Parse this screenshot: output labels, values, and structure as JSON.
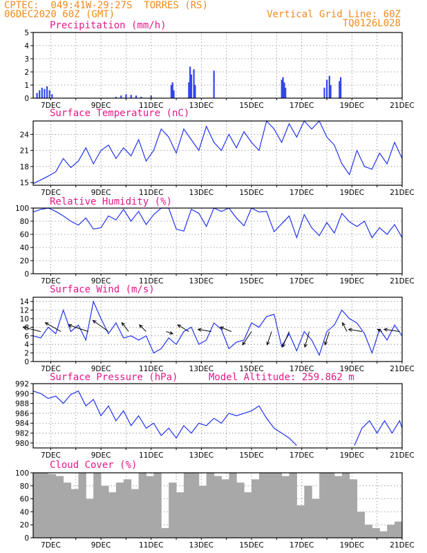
{
  "header": {
    "line1_left": "CPTEC:  049:41W-29:27S  TORRES (RS)",
    "line2_left": "06DEC2020 60Z (GMT)",
    "line1_right": "Vertical Grid Line: 60Z",
    "line2_right": "TQ0126L028"
  },
  "date_ticks": [
    "7DEC",
    "9DEC",
    "11DEC",
    "13DEC",
    "15DEC",
    "17DEC",
    "19DEC",
    "21DEC"
  ],
  "colors": {
    "header": "#f08a1c",
    "label": "#e0198a",
    "line": "#2233ee",
    "bar": "#3344ee",
    "cloud": "#a8a8a8",
    "arrow": "#000000"
  },
  "chart_data": [
    {
      "id": "precip",
      "type": "bar",
      "title": "Precipitation (mm/h)",
      "x_range": [
        6.3,
        21.0
      ],
      "ylim": [
        0,
        5
      ],
      "yticks": [
        "0",
        "1",
        "2",
        "3",
        "4",
        "5"
      ],
      "series": [
        {
          "x": [
            6.45,
            6.55,
            6.65,
            6.75,
            6.85,
            6.95,
            7.05,
            9.6,
            9.8,
            10.0,
            10.2,
            10.4,
            10.6,
            11.0,
            11.8,
            11.85,
            11.9,
            12.5,
            12.55,
            12.6,
            12.7,
            12.75,
            13.5,
            16.2,
            16.25,
            16.3,
            16.35,
            17.9,
            18.0,
            18.1,
            18.15,
            18.5,
            18.55
          ],
          "values": [
            0.4,
            0.6,
            0.8,
            0.7,
            0.9,
            0.6,
            0.3,
            0.1,
            0.2,
            0.3,
            0.25,
            0.2,
            0.1,
            0.2,
            1.0,
            1.2,
            0.6,
            1.2,
            2.4,
            1.8,
            2.2,
            1.0,
            2.1,
            1.4,
            1.6,
            1.2,
            0.8,
            0.8,
            1.4,
            1.7,
            1.0,
            1.3,
            1.6
          ]
        }
      ]
    },
    {
      "id": "temp",
      "type": "line",
      "title": "Surface Temperature (nC)",
      "x_range": [
        6.3,
        21.0
      ],
      "ylim": [
        14.5,
        26.5
      ],
      "yticks": [
        "15",
        "18",
        "21",
        "24"
      ],
      "series": [
        {
          "x": [
            6.3,
            6.6,
            6.9,
            7.2,
            7.5,
            7.8,
            8.1,
            8.4,
            8.7,
            9.0,
            9.3,
            9.6,
            9.9,
            10.2,
            10.5,
            10.8,
            11.1,
            11.4,
            11.7,
            12.0,
            12.3,
            12.6,
            12.9,
            13.2,
            13.5,
            13.8,
            14.1,
            14.4,
            14.7,
            15.0,
            15.3,
            15.6,
            15.9,
            16.2,
            16.5,
            16.8,
            17.1,
            17.4,
            17.7,
            18.0,
            18.3,
            18.6,
            18.9,
            19.2,
            19.5,
            19.8,
            20.1,
            20.4,
            20.7,
            21.0
          ],
          "values": [
            14.8,
            15.5,
            16.2,
            17.0,
            19.5,
            17.8,
            19.0,
            21.5,
            18.5,
            21.0,
            22.0,
            19.5,
            21.5,
            20.0,
            23.0,
            19.0,
            21.0,
            25.0,
            23.5,
            20.5,
            25.0,
            23.0,
            21.0,
            25.5,
            22.5,
            21.0,
            24.0,
            21.5,
            24.5,
            22.5,
            21.0,
            26.5,
            25.0,
            22.5,
            26.0,
            23.5,
            26.5,
            25.0,
            26.5,
            23.5,
            22.0,
            18.5,
            16.5,
            21.0,
            18.0,
            17.5,
            20.5,
            18.5,
            22.5,
            19.5
          ]
        }
      ]
    },
    {
      "id": "rh",
      "type": "line",
      "title": "Relative Humidity (%)",
      "x_range": [
        6.3,
        21.0
      ],
      "ylim": [
        0,
        100
      ],
      "yticks": [
        "0",
        "20",
        "40",
        "60",
        "80",
        "100"
      ],
      "series": [
        {
          "x": [
            6.3,
            6.6,
            6.9,
            7.2,
            7.5,
            7.8,
            8.1,
            8.4,
            8.7,
            9.0,
            9.3,
            9.6,
            9.9,
            10.2,
            10.5,
            10.8,
            11.1,
            11.4,
            11.7,
            12.0,
            12.3,
            12.6,
            12.9,
            13.2,
            13.5,
            13.8,
            14.1,
            14.4,
            14.7,
            15.0,
            15.3,
            15.6,
            15.9,
            16.2,
            16.5,
            16.8,
            17.1,
            17.4,
            17.7,
            18.0,
            18.3,
            18.6,
            18.9,
            19.2,
            19.5,
            19.8,
            20.1,
            20.4,
            20.7,
            21.0
          ],
          "values": [
            94,
            98,
            100,
            95,
            88,
            80,
            74,
            85,
            68,
            70,
            88,
            82,
            98,
            80,
            95,
            75,
            90,
            100,
            100,
            68,
            65,
            98,
            92,
            72,
            100,
            95,
            100,
            85,
            73,
            100,
            94,
            95,
            64,
            76,
            88,
            55,
            90,
            70,
            58,
            78,
            62,
            92,
            79,
            72,
            80,
            55,
            70,
            60,
            75,
            55
          ]
        }
      ]
    },
    {
      "id": "wind",
      "type": "line",
      "title": "Surface Wind (m/s)",
      "x_range": [
        6.3,
        21.0
      ],
      "ylim": [
        0,
        15
      ],
      "yticks": [
        "0",
        "2",
        "4",
        "6",
        "8",
        "10",
        "12",
        "14"
      ],
      "series": [
        {
          "x": [
            6.3,
            6.6,
            6.9,
            7.2,
            7.5,
            7.8,
            8.1,
            8.4,
            8.7,
            9.0,
            9.3,
            9.6,
            9.9,
            10.2,
            10.5,
            10.8,
            11.1,
            11.4,
            11.7,
            12.0,
            12.3,
            12.6,
            12.9,
            13.2,
            13.5,
            13.8,
            14.1,
            14.4,
            14.7,
            15.0,
            15.3,
            15.6,
            15.9,
            16.2,
            16.5,
            16.8,
            17.1,
            17.4,
            17.7,
            18.0,
            18.3,
            18.6,
            18.9,
            19.2,
            19.5,
            19.8,
            20.1,
            20.4,
            20.7,
            21.0
          ],
          "values": [
            6.0,
            5.5,
            8.0,
            6.5,
            12.0,
            7.0,
            8.5,
            5.0,
            14.0,
            10.0,
            6.5,
            9.0,
            5.5,
            6.0,
            5.0,
            6.0,
            2.0,
            3.0,
            5.5,
            4.0,
            7.0,
            8.0,
            4.0,
            5.0,
            9.0,
            7.5,
            3.0,
            4.5,
            5.0,
            9.0,
            8.0,
            10.5,
            11.0,
            3.5,
            6.5,
            2.5,
            7.0,
            5.0,
            1.5,
            7.0,
            8.5,
            12.0,
            10.0,
            9.0,
            6.5,
            2.0,
            7.5,
            5.0,
            8.5,
            6.0
          ]
        }
      ],
      "arrows": {
        "x": [
          6.6,
          7.4,
          8.5,
          9.3,
          10.1,
          10.8,
          11.6,
          12.5,
          13.4,
          14.2,
          15.0,
          15.8,
          16.5,
          17.3,
          18.1,
          18.8,
          19.4,
          20.2,
          20.9
        ],
        "u": [
          -8,
          -7,
          -9,
          -7,
          -3,
          -3,
          3,
          -5,
          -6,
          -5,
          -4,
          -2,
          -3,
          -2,
          -2,
          -2,
          -6,
          -2,
          -7
        ],
        "v": [
          2,
          4,
          3,
          5,
          4,
          3,
          -1,
          3,
          1,
          2,
          -6,
          -6,
          -7,
          -7,
          -6,
          4,
          1,
          1,
          1
        ]
      }
    },
    {
      "id": "pres",
      "type": "line",
      "title": "Surface Pressure (hPa)",
      "annotation": "Model Altitude: 259.862 m",
      "x_range": [
        6.3,
        21.0
      ],
      "ylim": [
        979,
        992
      ],
      "yticks": [
        "980",
        "982",
        "984",
        "986",
        "988",
        "990",
        "992"
      ],
      "series": [
        {
          "x": [
            6.3,
            6.6,
            6.9,
            7.2,
            7.5,
            7.8,
            8.1,
            8.4,
            8.7,
            9.0,
            9.3,
            9.6,
            9.9,
            10.2,
            10.5,
            10.8,
            11.1,
            11.4,
            11.7,
            12.0,
            12.3,
            12.6,
            12.9,
            13.2,
            13.5,
            13.8,
            14.1,
            14.4,
            14.7,
            15.0,
            15.3,
            15.6,
            15.9,
            16.2,
            16.5,
            16.8
          ],
          "values": [
            990.5,
            990.0,
            989.0,
            989.5,
            988.0,
            989.8,
            990.5,
            987.5,
            988.8,
            985.5,
            987.5,
            984.5,
            986.5,
            983.5,
            985.5,
            983.0,
            984.0,
            981.5,
            983.0,
            981.0,
            983.5,
            982.0,
            984.0,
            983.5,
            985.0,
            984.0,
            986.0,
            985.5,
            986.0,
            986.5,
            987.5,
            985.0,
            983.0,
            982.0,
            981.0,
            979.5
          ]
        },
        {
          "x": [
            19.1,
            19.4,
            19.7,
            20.0,
            20.3,
            20.6,
            20.9,
            21.0
          ],
          "values": [
            979.5,
            983.0,
            984.5,
            982.0,
            984.5,
            982.0,
            984.5,
            983.0
          ]
        }
      ]
    },
    {
      "id": "cloud",
      "type": "bar",
      "title": "Cloud Cover (%)",
      "x_range": [
        6.3,
        21.0
      ],
      "ylim": [
        0,
        100
      ],
      "yticks": [
        "0",
        "20",
        "40",
        "60",
        "80",
        "100"
      ],
      "series": [
        {
          "x": [
            6.3,
            6.6,
            6.9,
            7.2,
            7.5,
            7.8,
            8.1,
            8.4,
            8.7,
            9.0,
            9.3,
            9.6,
            9.9,
            10.2,
            10.5,
            10.8,
            11.1,
            11.4,
            11.7,
            12.0,
            12.3,
            12.6,
            12.9,
            13.2,
            13.5,
            13.8,
            14.1,
            14.4,
            14.7,
            15.0,
            15.3,
            15.6,
            15.9,
            16.2,
            16.5,
            16.8,
            17.1,
            17.4,
            17.7,
            18.0,
            18.3,
            18.6,
            18.9,
            19.2,
            19.5,
            19.8,
            20.1,
            20.4,
            20.7,
            21.0
          ],
          "values": [
            100,
            100,
            98,
            95,
            85,
            75,
            100,
            60,
            100,
            80,
            70,
            85,
            90,
            75,
            100,
            95,
            100,
            15,
            85,
            70,
            100,
            100,
            80,
            100,
            95,
            90,
            100,
            85,
            70,
            90,
            100,
            100,
            100,
            95,
            100,
            50,
            80,
            60,
            100,
            100,
            95,
            100,
            90,
            40,
            20,
            15,
            10,
            20,
            25,
            5
          ]
        }
      ]
    }
  ]
}
